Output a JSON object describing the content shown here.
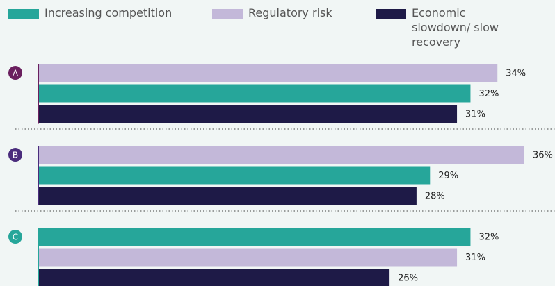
{
  "chart_data": {
    "type": "hbar-grouped",
    "categories": [
      "A",
      "B",
      "C"
    ],
    "category_colors": [
      "#6a1f5e",
      "#4a2c7c",
      "#26a69a"
    ],
    "series": [
      {
        "name": "Increasing competition",
        "color": "#26a69a",
        "values": [
          32,
          29,
          32
        ],
        "value_labels": [
          "32%",
          "29%",
          "32%"
        ]
      },
      {
        "name": "Regulatory risk",
        "color": "#c3b8d9",
        "values": [
          34,
          36,
          31
        ],
        "value_labels": [
          "34%",
          "36%",
          "31%"
        ]
      },
      {
        "name": "Economic slowdown/ slow recovery",
        "color": "#1e1a47",
        "values": [
          31,
          28,
          26
        ],
        "value_labels": [
          "31%",
          "28%",
          "26%"
        ]
      }
    ],
    "legend": "top"
  }
}
